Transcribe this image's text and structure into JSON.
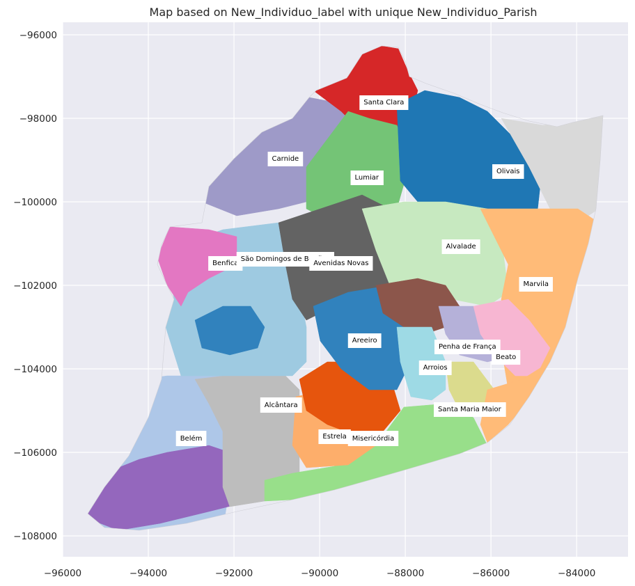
{
  "chart_data": {
    "type": "map",
    "title": "Map based on New_Individuo_label with unique New_Individuo_Parish",
    "xlim": [
      -96000,
      -82800
    ],
    "ylim": [
      -108500,
      -95700
    ],
    "x_ticks": [
      -96000,
      -94000,
      -92000,
      -90000,
      -88000,
      -86000,
      -84000
    ],
    "y_ticks": [
      -96000,
      -98000,
      -100000,
      -102000,
      -104000,
      -106000,
      -108000
    ],
    "x_tick_labels": [
      "−96000",
      "−94000",
      "−92000",
      "−90000",
      "−88000",
      "−86000",
      "−84000"
    ],
    "y_tick_labels": [
      "−96000",
      "−98000",
      "−100000",
      "−102000",
      "−104000",
      "−106000",
      "−108000"
    ],
    "background": "#eaeaf2",
    "grid": true,
    "parishes": [
      {
        "name": "Santa Clara",
        "x": -88500,
        "y": -97600,
        "color": "#d62728"
      },
      {
        "name": "Carnide",
        "x": -90800,
        "y": -98950,
        "color": "#9e9ac8"
      },
      {
        "name": "Lumiar",
        "x": -88900,
        "y": -99400,
        "color": "#74c476"
      },
      {
        "name": "Olivais",
        "x": -85600,
        "y": -99250,
        "color": "#1f77b4"
      },
      {
        "name": "Alvalade",
        "x": -86700,
        "y": -101050,
        "color": "#c7e9c0"
      },
      {
        "name": "Benfica",
        "x": -92200,
        "y": -101450,
        "color": "#e377c2"
      },
      {
        "name": "São Domingos de Benfica",
        "x": -90800,
        "y": -101350,
        "color": "#9ecae1"
      },
      {
        "name": "Avenidas Novas",
        "x": -89500,
        "y": -101450,
        "color": "#636363"
      },
      {
        "name": "Marvila",
        "x": -84950,
        "y": -101950,
        "color": "#ffbb78"
      },
      {
        "name": "Areeiro",
        "x": -88950,
        "y": -103300,
        "color": "#3182bd"
      },
      {
        "name": "Penha de França",
        "x": -86550,
        "y": -103450,
        "color": "#b5b1d9"
      },
      {
        "name": "Beato",
        "x": -85650,
        "y": -103700,
        "color": "#f7b6d2"
      },
      {
        "name": "Arroios",
        "x": -87300,
        "y": -103950,
        "color": "#9edae5"
      },
      {
        "name": "Alcântara",
        "x": -90900,
        "y": -104850,
        "color": "#bdbdbd"
      },
      {
        "name": "Santa Maria Maior",
        "x": -86500,
        "y": -104950,
        "color": "#98df8a"
      },
      {
        "name": "Belém",
        "x": -93000,
        "y": -105650,
        "color": "#aec7e8"
      },
      {
        "name": "Estrela",
        "x": -89650,
        "y": -105600,
        "color": "#e6550d"
      },
      {
        "name": "Misericórdia",
        "x": -88750,
        "y": -105650,
        "color": "#fdae6b"
      }
    ],
    "other_colors": {
      "outskirts": "#d9d9d9",
      "purple_belem": "#9467bd",
      "brown": "#8c564b",
      "olive": "#dbdb8d",
      "dark_gray": "#bcbcbc"
    }
  }
}
